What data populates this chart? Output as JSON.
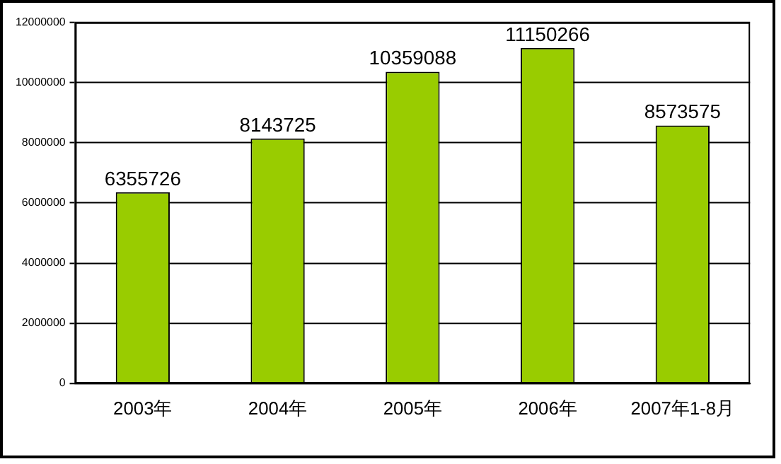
{
  "chart_data": {
    "type": "bar",
    "categories": [
      "2003年",
      "2004年",
      "2005年",
      "2006年",
      "2007年1-8月"
    ],
    "values": [
      6355726,
      8143725,
      10359088,
      11150266,
      8573575
    ],
    "color": "#99cc00",
    "ylim": [
      0,
      12000000
    ],
    "yticks": [
      0,
      2000000,
      4000000,
      6000000,
      8000000,
      10000000,
      12000000
    ],
    "grid": "y",
    "legend": false,
    "data_labels": true
  }
}
